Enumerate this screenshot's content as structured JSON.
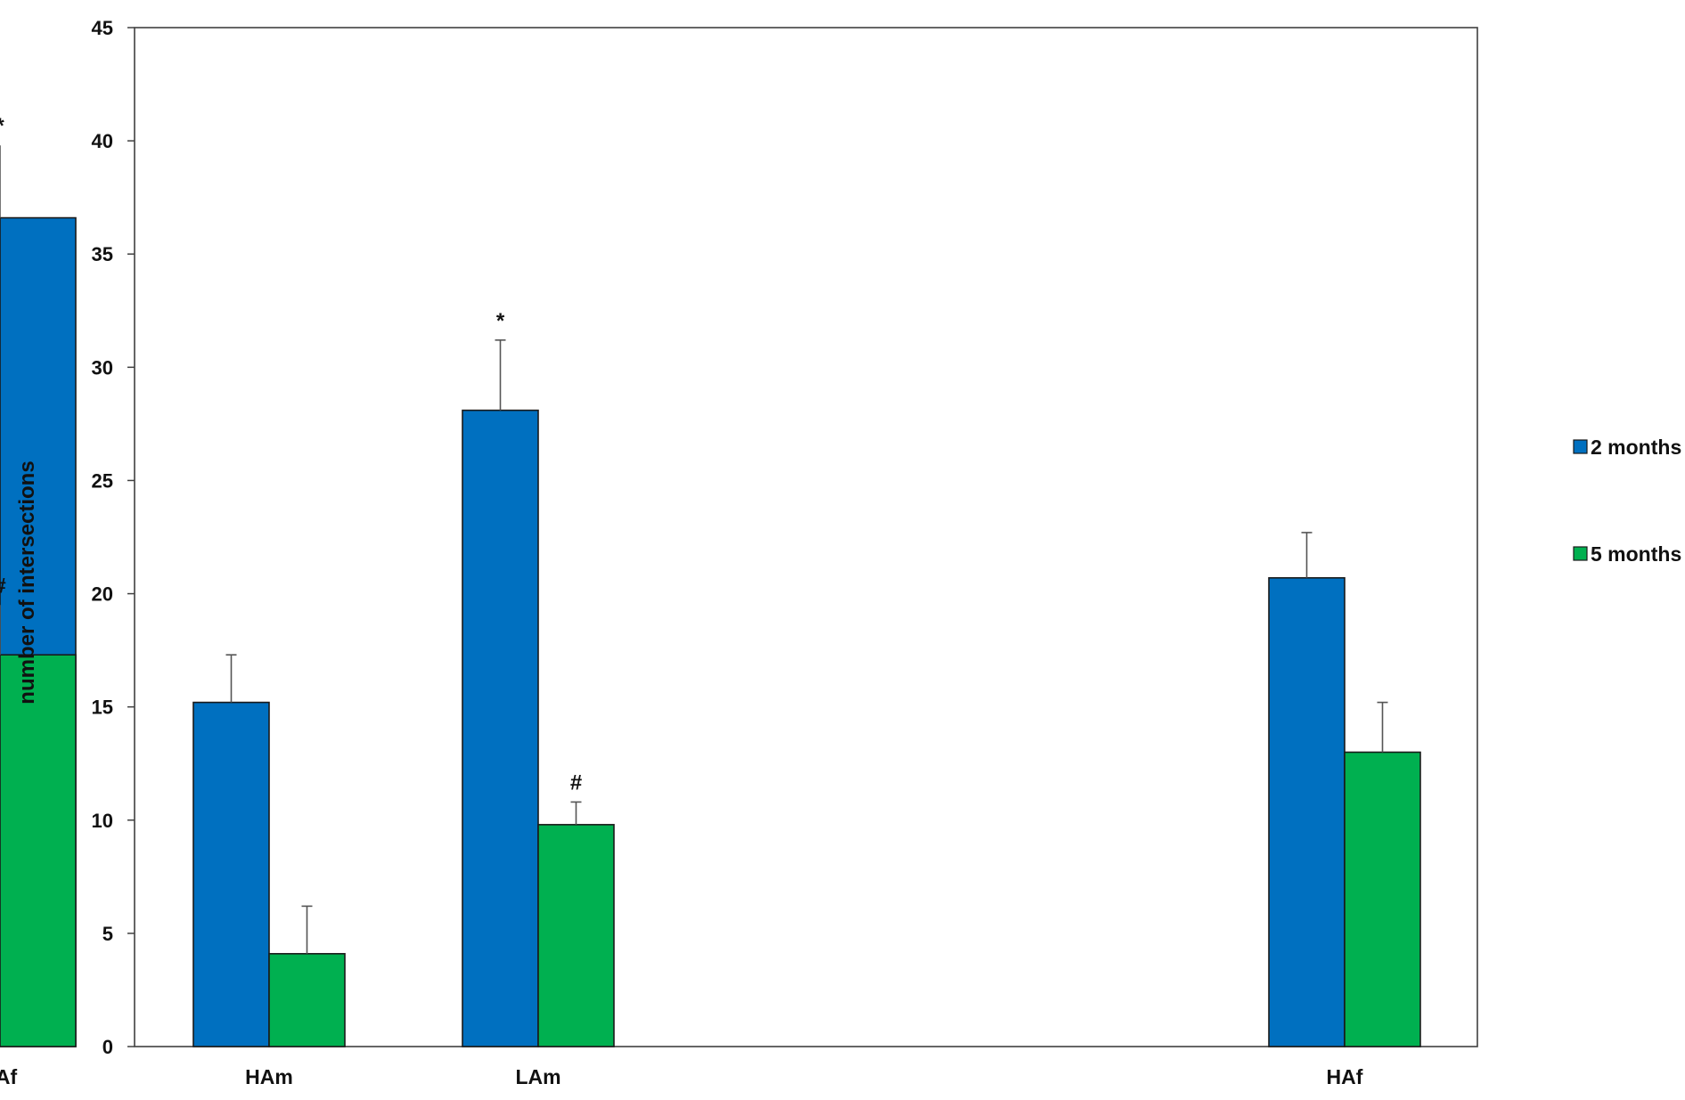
{
  "chart_data": {
    "type": "bar",
    "title": "",
    "xlabel": "",
    "ylabel": "number of intersections",
    "ylim": [
      0,
      45
    ],
    "yticks": [
      0,
      5,
      10,
      15,
      20,
      25,
      30,
      35,
      40,
      45
    ],
    "grid": false,
    "legend_position": "right",
    "groups": [
      {
        "category": "HAm",
        "slot": 0
      },
      {
        "category": "LAm",
        "slot": 1
      },
      {
        "category": "HAf",
        "slot": 3
      },
      {
        "category": "LAf",
        "slot": 4
      }
    ],
    "categories": [
      "HAm",
      "LAm",
      "HAf",
      "LAf"
    ],
    "series": [
      {
        "name": "2 months",
        "color": "#0070C0",
        "values": [
          15.2,
          28.1,
          20.7,
          36.6
        ],
        "errors": [
          2.1,
          3.1,
          2.0,
          3.2
        ],
        "annotations": [
          "",
          "*",
          "",
          "*"
        ]
      },
      {
        "name": "5 months",
        "color": "#00B050",
        "values": [
          4.1,
          9.8,
          13.0,
          17.3
        ],
        "errors": [
          2.1,
          1.0,
          2.2,
          2.2
        ],
        "annotations": [
          "",
          "#",
          "",
          "#"
        ]
      }
    ]
  }
}
